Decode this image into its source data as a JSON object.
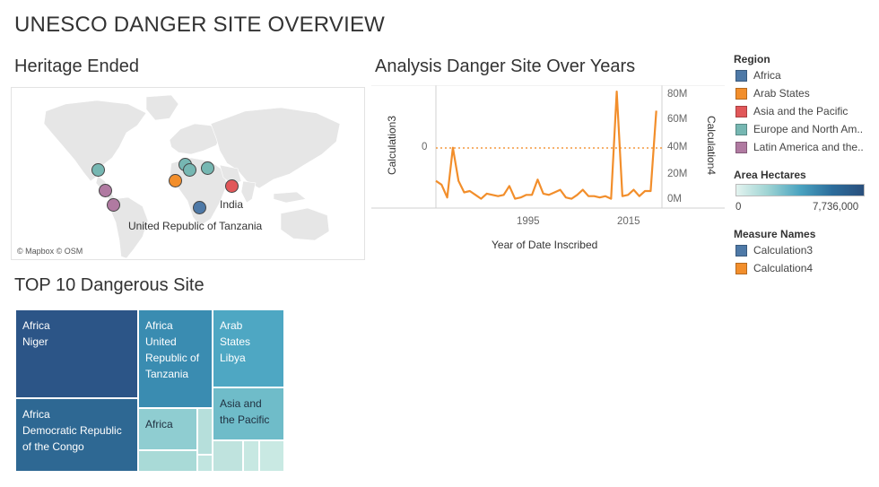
{
  "dashboard": {
    "title": "UNESCO DANGER SITE OVERVIEW"
  },
  "map": {
    "title": "Heritage Ended",
    "attribution": "© Mapbox © OSM",
    "labels": {
      "india": "India",
      "tanzania": "United Republic of Tanzania"
    }
  },
  "line_chart": {
    "title": "Analysis Danger Site Over Years",
    "y_left_label": "Calculation3",
    "y_right_label": "Calculation4",
    "x_label": "Year of Date Inscribed",
    "y_left_ticks": [
      "0"
    ],
    "y_right_ticks": [
      "80M",
      "60M",
      "40M",
      "20M",
      "0M"
    ],
    "x_ticks": [
      "1995",
      "2015"
    ]
  },
  "legend": {
    "region_title": "Region",
    "regions": [
      {
        "name": "Africa",
        "color": "#4e79a7"
      },
      {
        "name": "Arab States",
        "color": "#f28e2b"
      },
      {
        "name": "Asia and the Pacific",
        "color": "#e15759"
      },
      {
        "name": "Europe and North Am..",
        "color": "#76b7b2"
      },
      {
        "name": "Latin America and the..",
        "color": "#b07aa1"
      }
    ],
    "area_title": "Area Hectares",
    "area_min": "0",
    "area_max": "7,736,000",
    "measure_title": "Measure Names",
    "measures": [
      {
        "name": "Calculation3",
        "color": "#4e79a7"
      },
      {
        "name": "Calculation4",
        "color": "#f28e2b"
      }
    ]
  },
  "treemap": {
    "title": "TOP 10 Dangerous Site",
    "cells": [
      {
        "lines": [
          "Africa",
          "Niger"
        ],
        "color": "#2c5587",
        "text_color": "#ffffff"
      },
      {
        "lines": [
          "Africa",
          "Democratic Republic",
          "of the Congo"
        ],
        "color": "#2e6893",
        "text_color": "#ffffff"
      },
      {
        "lines": [
          "Africa",
          "United",
          "Republic of",
          "Tanzania"
        ],
        "color": "#3a8cb1",
        "text_color": "#ffffff"
      },
      {
        "lines": [
          "Arab",
          "States",
          "Libya"
        ],
        "color": "#4ea7c3",
        "text_color": "#ffffff"
      },
      {
        "lines": [
          "Asia and",
          "the Pacific"
        ],
        "color": "#6fbcc9",
        "text_color": "#1f2f3f"
      },
      {
        "lines": [
          "Africa"
        ],
        "color": "#8fcdd1",
        "text_color": "#1f2f3f"
      },
      {
        "lines": [],
        "color": "#a9dad7"
      },
      {
        "lines": [],
        "color": "#b6dfdb"
      },
      {
        "lines": [],
        "color": "#c1e5e0"
      },
      {
        "lines": [],
        "color": "#bfe3de"
      },
      {
        "lines": [],
        "color": "#c7e8e2"
      },
      {
        "lines": [],
        "color": "#c9e9e3"
      },
      {
        "lines": [],
        "color": "#cdeae4"
      }
    ]
  },
  "chart_data": {
    "type": "line",
    "x_label": "Year of Date Inscribed",
    "y_label": "Calculation4",
    "xlim": [
      1979,
      2019
    ],
    "ylim": [
      0,
      90000000
    ],
    "series": [
      {
        "name": "Calculation4",
        "color": "#f28e2b",
        "x": [
          1979,
          1980,
          1981,
          1982,
          1983,
          1984,
          1985,
          1986,
          1987,
          1988,
          1989,
          1990,
          1991,
          1992,
          1993,
          1994,
          1995,
          1996,
          1997,
          1998,
          1999,
          2000,
          2001,
          2002,
          2003,
          2004,
          2005,
          2006,
          2007,
          2008,
          2009,
          2010,
          2011,
          2012,
          2013,
          2014,
          2015,
          2016,
          2017,
          2018
        ],
        "y": [
          15000000,
          12000000,
          2000000,
          41000000,
          15000000,
          6000000,
          7000000,
          4000000,
          1000000,
          5000000,
          4000000,
          3000000,
          4000000,
          11000000,
          1000000,
          2000000,
          4000000,
          4000000,
          16000000,
          5000000,
          4000000,
          6000000,
          8000000,
          2000000,
          1000000,
          4000000,
          8000000,
          3000000,
          3000000,
          2000000,
          3000000,
          1000000,
          85000000,
          3000000,
          4000000,
          8000000,
          3000000,
          7000000,
          7000000,
          70000000
        ]
      }
    ]
  }
}
